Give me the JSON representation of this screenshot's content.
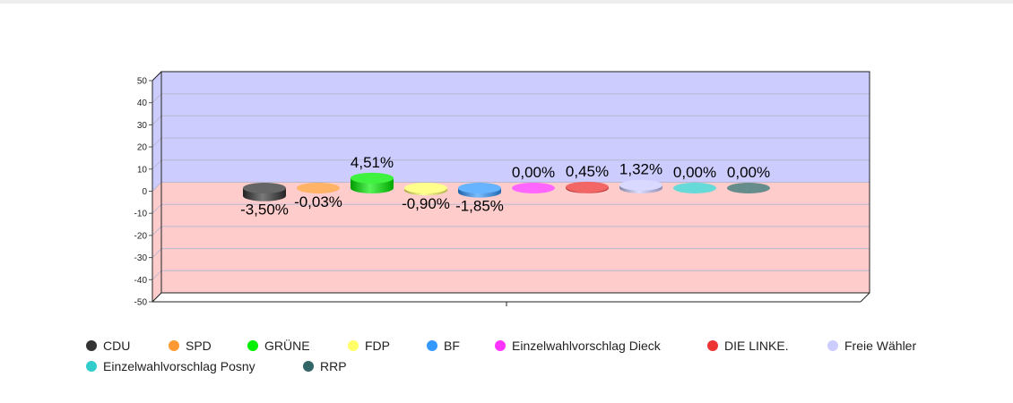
{
  "chart_data": {
    "type": "bar",
    "title": "",
    "xlabel": "",
    "ylabel": "",
    "ylim": [
      -50,
      50
    ],
    "yticks": [
      "50",
      "40",
      "30",
      "20",
      "10",
      "0",
      "-10",
      "-20",
      "-30",
      "-40",
      "-50"
    ],
    "zones": {
      "positive_color": "#ccccff",
      "negative_color": "#ffcccc"
    },
    "categories": [
      "CDU",
      "SPD",
      "GRÜNE",
      "FDP",
      "BF",
      "Einzelwahlvorschlag Dieck",
      "DIE LINKE.",
      "Freie Wähler",
      "Einzelwahlvorschlag Posny",
      "RRP"
    ],
    "values": [
      -3.5,
      -0.03,
      4.51,
      -0.9,
      -1.85,
      0.0,
      0.45,
      1.32,
      0.0,
      0.0
    ],
    "labels": [
      "-3,50%",
      "-0,03%",
      "4,51%",
      "-0,90%",
      "-1,85%",
      "0,00%",
      "0,45%",
      "1,32%",
      "0,00%",
      "0,00%"
    ],
    "colors": [
      "#333333",
      "#ff9933",
      "#00ee00",
      "#ffff66",
      "#3399ff",
      "#ff33ff",
      "#ee3333",
      "#ccccff",
      "#33cccc",
      "#336666"
    ],
    "legend_position": "bottom"
  }
}
